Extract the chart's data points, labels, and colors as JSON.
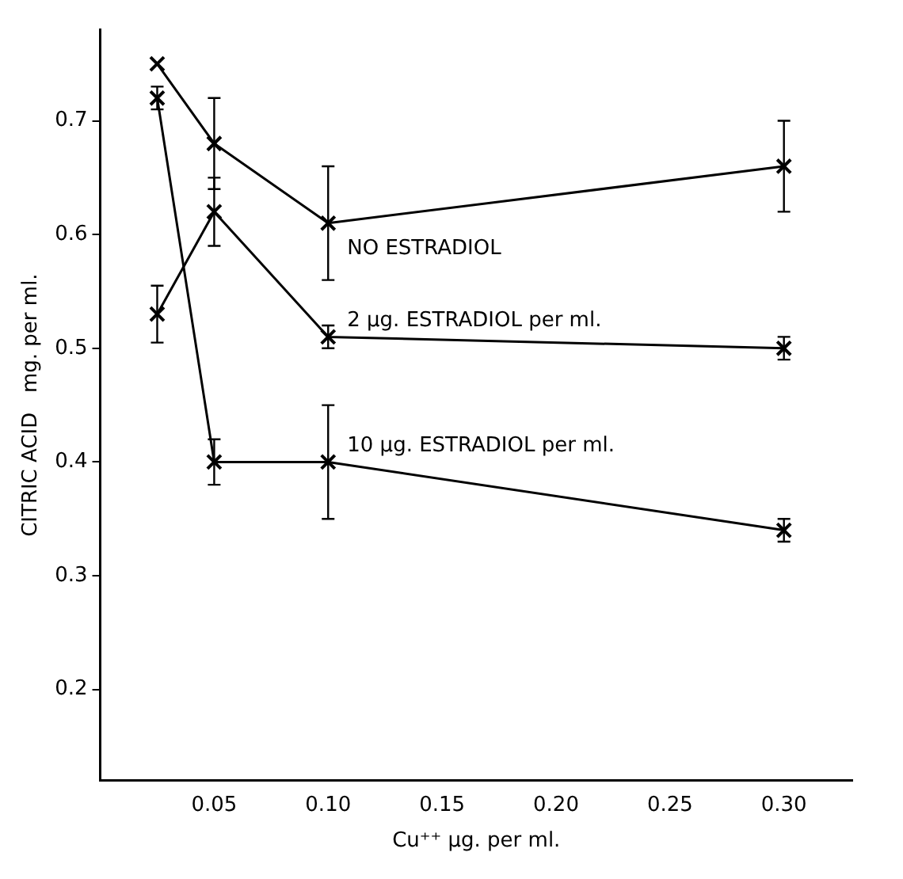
{
  "chart_data": {
    "type": "line",
    "xlabel": "Cu⁺⁺ µg. per ml.",
    "ylabel": "CITRIC ACID   mg. per ml.",
    "xlim": [
      0,
      0.33
    ],
    "xticks": [
      {
        "value": 0.05,
        "label": "0.05"
      },
      {
        "value": 0.1,
        "label": "0.10"
      },
      {
        "value": 0.15,
        "label": "0.15"
      },
      {
        "value": 0.2,
        "label": "0.20"
      },
      {
        "value": 0.25,
        "label": "0.25"
      },
      {
        "value": 0.3,
        "label": "0.30"
      }
    ],
    "ylim": [
      0.12,
      0.78
    ],
    "yticks": [
      0.2,
      0.3,
      0.4,
      0.5,
      0.6,
      0.7
    ],
    "x": [
      0.025,
      0.05,
      0.1,
      0.3
    ],
    "series": [
      {
        "name": "NO ESTRADIOL",
        "color": "#000000",
        "values": [
          0.75,
          0.68,
          0.61,
          0.66
        ],
        "errors": [
          null,
          0.04,
          0.05,
          0.04
        ]
      },
      {
        "name": "2 µg. ESTRADIOL per ml.",
        "color": "#000000",
        "values": [
          0.53,
          0.62,
          0.51,
          0.5
        ],
        "errors": [
          0.025,
          0.03,
          0.01,
          0.01
        ]
      },
      {
        "name": "10 µg. ESTRADIOL per ml.",
        "color": "#000000",
        "values": [
          0.72,
          0.4,
          0.4,
          0.34
        ],
        "errors": [
          0.01,
          0.02,
          0.05,
          0.01
        ]
      }
    ],
    "marker": "cross",
    "line_style": "solid",
    "grid": false,
    "legend": false
  }
}
